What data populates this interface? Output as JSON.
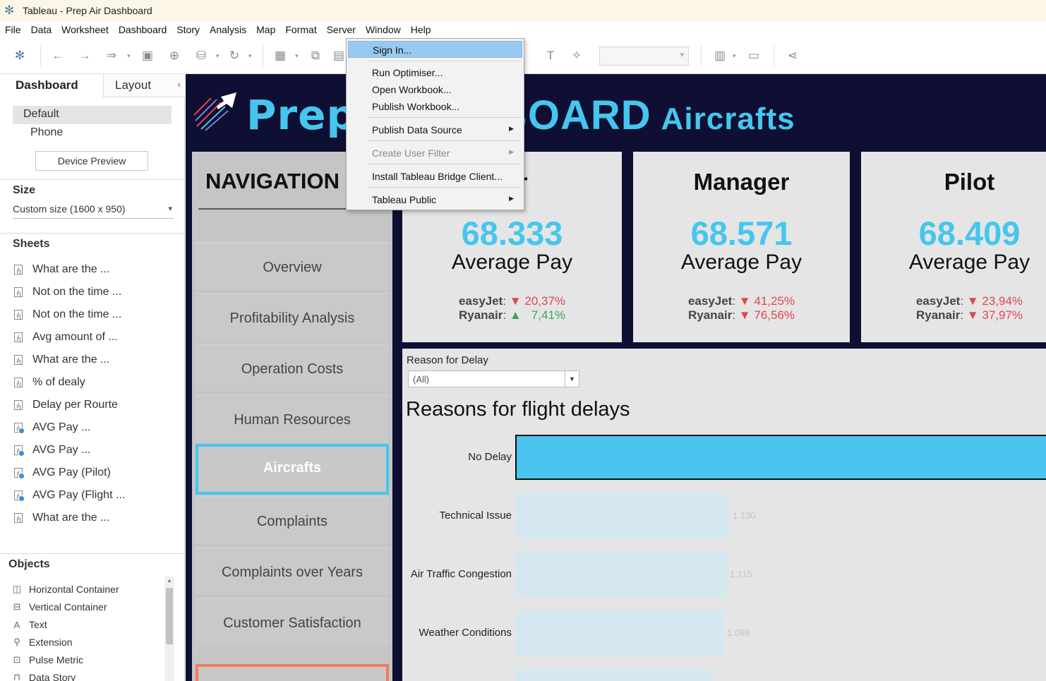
{
  "window": {
    "title": "Tableau - Prep Air Dashboard"
  },
  "menubar": [
    "File",
    "Data",
    "Worksheet",
    "Dashboard",
    "Story",
    "Analysis",
    "Map",
    "Format",
    "Server",
    "Window",
    "Help"
  ],
  "server_menu": {
    "items": [
      {
        "label": "Sign In...",
        "submenu": false,
        "disabled": false,
        "highlighted": true
      },
      {
        "label": "Run Optimiser...",
        "submenu": false,
        "disabled": false
      },
      {
        "label": "Open Workbook...",
        "submenu": false,
        "disabled": false
      },
      {
        "label": "Publish Workbook...",
        "submenu": false,
        "disabled": false
      },
      {
        "label": "Publish Data Source",
        "submenu": true,
        "disabled": false
      },
      {
        "label": "Create User Filter",
        "submenu": true,
        "disabled": true
      },
      {
        "label": "Install Tableau Bridge Client...",
        "submenu": false,
        "disabled": false
      },
      {
        "label": "Tableau Public",
        "submenu": true,
        "disabled": false
      }
    ]
  },
  "left_pane": {
    "tab_dashboard": "Dashboard",
    "tab_layout": "Layout",
    "device_default": "Default",
    "device_phone": "Phone",
    "device_preview": "Device Preview",
    "size_title": "Size",
    "size_value": "Custom size (1600 x 950)",
    "sheets_title": "Sheets",
    "sheets": [
      {
        "label": "What are the ...",
        "metric": false
      },
      {
        "label": "Not on the time ...",
        "metric": false
      },
      {
        "label": "Not on the time ...",
        "metric": false
      },
      {
        "label": "Avg amount of ...",
        "metric": false
      },
      {
        "label": "What are the ...",
        "metric": false
      },
      {
        "label": "% of dealy",
        "metric": false
      },
      {
        "label": "Delay per Rourte",
        "metric": false
      },
      {
        "label": "AVG Pay ...",
        "metric": true
      },
      {
        "label": "AVG Pay ...",
        "metric": true
      },
      {
        "label": "AVG Pay (Pilot)",
        "metric": true
      },
      {
        "label": "AVG Pay (Flight ...",
        "metric": true
      },
      {
        "label": "What are the ...",
        "metric": false
      }
    ],
    "objects_title": "Objects",
    "objects": [
      {
        "label": "Horizontal Container",
        "icon": "horizontal-container-icon"
      },
      {
        "label": "Vertical Container",
        "icon": "vertical-container-icon"
      },
      {
        "label": "Text",
        "icon": "text-icon"
      },
      {
        "label": "Extension",
        "icon": "extension-icon"
      },
      {
        "label": "Pulse Metric",
        "icon": "pulse-metric-icon"
      },
      {
        "label": "Data Story",
        "icon": "data-story-icon"
      }
    ]
  },
  "dashboard": {
    "title_left": "Prep",
    "title_right": "BOARD",
    "title_sub": "Aircrafts",
    "navigation": {
      "title": "NAVIGATION",
      "items": [
        "Overview",
        "Profitability Analysis",
        "Operation Costs",
        "Human Resources",
        "Aircrafts",
        "Complaints",
        "Complaints over Years",
        "Customer Satisfaction"
      ],
      "selected": "Aircrafts"
    },
    "cards": [
      {
        "title": "tor",
        "value": "68.333",
        "label": "Average Pay",
        "easyjet_label": "easyJet",
        "easyjet_dir": "down",
        "easyjet_val": "20,37%",
        "ryanair_label": "Ryanair",
        "ryanair_dir": "up",
        "ryanair_val": "7,41%"
      },
      {
        "title": "Manager",
        "value": "68.571",
        "label": "Average Pay",
        "easyjet_label": "easyJet",
        "easyjet_dir": "down",
        "easyjet_val": "41,25%",
        "ryanair_label": "Ryanair",
        "ryanair_dir": "down",
        "ryanair_val": "76,56%"
      },
      {
        "title": "Pilot",
        "value": "68.409",
        "label": "Average Pay",
        "easyjet_label": "easyJet",
        "easyjet_dir": "down",
        "easyjet_val": "23,94%",
        "ryanair_label": "Ryanair",
        "ryanair_dir": "down",
        "ryanair_val": "37,97%"
      }
    ],
    "filter": {
      "label": "Reason for Delay",
      "value": "(All)"
    },
    "colors": {
      "accent": "#45c6ee",
      "background": "#0e0f33",
      "panel": "#e5e5e5",
      "bar": "#d5e8f1",
      "highlight_border": "#45c6ee",
      "down": "#e0454f",
      "up": "#3aa55b"
    }
  },
  "chart_data": {
    "type": "bar",
    "orientation": "horizontal",
    "title": "Reasons for flight delays",
    "categories": [
      "No Delay",
      "Technical Issue",
      "Air Traffic Congestion",
      "Weather Conditions"
    ],
    "values": [
      null,
      1130,
      1115,
      1099
    ],
    "value_labels": [
      "",
      "1.130",
      "1.115",
      "1.099"
    ],
    "highlighted": "No Delay"
  }
}
